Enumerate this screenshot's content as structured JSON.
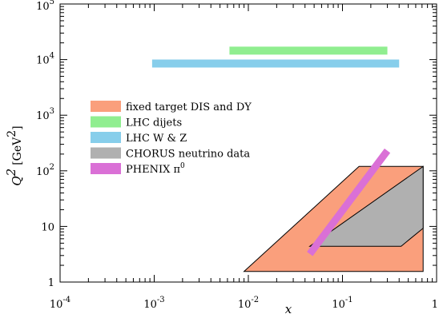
{
  "chart_data": {
    "type": "area",
    "title": "",
    "xlabel": "x",
    "ylabel": "Q",
    "ylabel_sup": "2",
    "ylabel_unit": "[GeV",
    "ylabel_unit_sup": "2",
    "ylabel_unit_close": "]",
    "x_scale": "log",
    "y_scale": "log",
    "xlim": [
      0.0001,
      1
    ],
    "ylim": [
      1,
      100000
    ],
    "grid": false,
    "legend_position": "center-left",
    "x_ticks": [
      {
        "value": 0.0001,
        "base": "10",
        "exp": "-4"
      },
      {
        "value": 0.001,
        "base": "10",
        "exp": "-3"
      },
      {
        "value": 0.01,
        "base": "10",
        "exp": "-2"
      },
      {
        "value": 0.1,
        "base": "10",
        "exp": "-1"
      },
      {
        "value": 1,
        "base": "1",
        "exp": ""
      }
    ],
    "y_ticks": [
      {
        "value": 1,
        "base": "1",
        "exp": ""
      },
      {
        "value": 10,
        "base": "10",
        "exp": ""
      },
      {
        "value": 100,
        "base": "10",
        "exp": "2"
      },
      {
        "value": 1000,
        "base": "10",
        "exp": "3"
      },
      {
        "value": 10000,
        "base": "10",
        "exp": "4"
      },
      {
        "value": 100000,
        "base": "10",
        "exp": "5"
      }
    ],
    "series": [
      {
        "name": "fixed target DIS and DY",
        "color": "#fa9f7c",
        "kind": "polygon",
        "points": [
          [
            0.009,
            1.55
          ],
          [
            0.15,
            120
          ],
          [
            0.72,
            120
          ],
          [
            0.72,
            1.55
          ]
        ]
      },
      {
        "name": "LHC dijets",
        "color": "#90ee90",
        "kind": "band",
        "x": [
          0.0063,
          0.3
        ],
        "y_center": 14500
      },
      {
        "name": "LHC W & Z",
        "color": "#87ceeb",
        "kind": "band",
        "x": [
          0.00095,
          0.4
        ],
        "y_center": 8500
      },
      {
        "name": "CHORUS neutrino data",
        "color": "#b0b0b0",
        "kind": "polygon",
        "points": [
          [
            0.045,
            4.4
          ],
          [
            0.72,
            120
          ],
          [
            0.72,
            9.3
          ],
          [
            0.42,
            4.4
          ]
        ]
      },
      {
        "name": "PHENIX π",
        "name_sup": "0",
        "color": "#da70d6",
        "kind": "line",
        "points": [
          [
            0.045,
            3.2
          ],
          [
            0.3,
            230
          ]
        ]
      }
    ]
  }
}
